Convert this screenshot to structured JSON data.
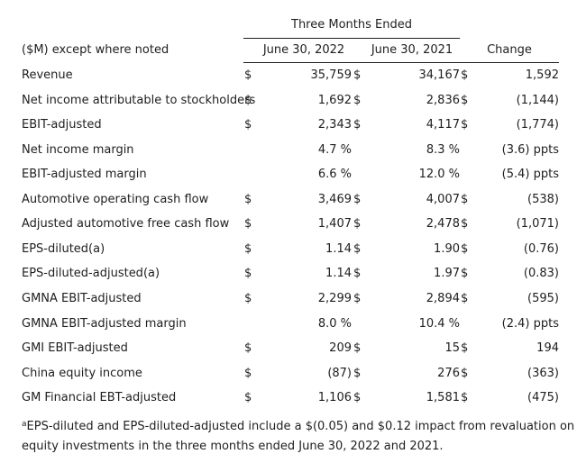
{
  "header": {
    "group_label": "Three Months Ended",
    "row_label": "($M) except where noted",
    "col1": "June 30, 2022",
    "col2": "June 30, 2021",
    "col3": "Change"
  },
  "rows": [
    {
      "label": "Revenue",
      "d1": "$",
      "v1": "35,759",
      "d2": "$",
      "v2": "34,167",
      "d3": "$",
      "v3": "1,592"
    },
    {
      "label": "Net income attributable to stockholders",
      "d1": "$",
      "v1": "1,692",
      "d2": "$",
      "v2": "2,836",
      "d3": "$",
      "v3": "(1,144)"
    },
    {
      "label": "EBIT-adjusted",
      "d1": "$",
      "v1": "2,343",
      "d2": "$",
      "v2": "4,117",
      "d3": "$",
      "v3": "(1,774)"
    },
    {
      "label": "Net income margin",
      "d1": "",
      "v1": "4.7 %",
      "d2": "",
      "v2": "8.3 %",
      "d3": "",
      "v3": "(3.6) ppts"
    },
    {
      "label": "EBIT-adjusted margin",
      "d1": "",
      "v1": "6.6 %",
      "d2": "",
      "v2": "12.0 %",
      "d3": "",
      "v3": "(5.4) ppts"
    },
    {
      "label": "Automotive operating cash flow",
      "d1": "$",
      "v1": "3,469",
      "d2": "$",
      "v2": "4,007",
      "d3": "$",
      "v3": "(538)"
    },
    {
      "label": "Adjusted automotive free cash flow",
      "d1": "$",
      "v1": "1,407",
      "d2": "$",
      "v2": "2,478",
      "d3": "$",
      "v3": "(1,071)"
    },
    {
      "label": "EPS-diluted(a)",
      "d1": "$",
      "v1": "1.14",
      "d2": "$",
      "v2": "1.90",
      "d3": "$",
      "v3": "(0.76)"
    },
    {
      "label": "EPS-diluted-adjusted(a)",
      "d1": "$",
      "v1": "1.14",
      "d2": "$",
      "v2": "1.97",
      "d3": "$",
      "v3": "(0.83)"
    },
    {
      "label": "GMNA EBIT-adjusted",
      "d1": "$",
      "v1": "2,299",
      "d2": "$",
      "v2": "2,894",
      "d3": "$",
      "v3": "(595)"
    },
    {
      "label": "GMNA EBIT-adjusted margin",
      "d1": "",
      "v1": "8.0 %",
      "d2": "",
      "v2": "10.4 %",
      "d3": "",
      "v3": "(2.4) ppts"
    },
    {
      "label": "GMI EBIT-adjusted",
      "d1": "$",
      "v1": "209",
      "d2": "$",
      "v2": "15",
      "d3": "$",
      "v3": "194"
    },
    {
      "label": "China equity income",
      "d1": "$",
      "v1": "(87)",
      "d2": "$",
      "v2": "276",
      "d3": "$",
      "v3": "(363)"
    },
    {
      "label": "GM Financial EBT-adjusted",
      "d1": "$",
      "v1": "1,106",
      "d2": "$",
      "v2": "1,581",
      "d3": "$",
      "v3": "(475)"
    }
  ],
  "footnote": {
    "marker": "a",
    "line1": "EPS-diluted and EPS-diluted-adjusted include a $(0.05) and $0.12 impact from revaluation on",
    "line2": "equity investments in the three months ended June 30, 2022 and 2021."
  }
}
